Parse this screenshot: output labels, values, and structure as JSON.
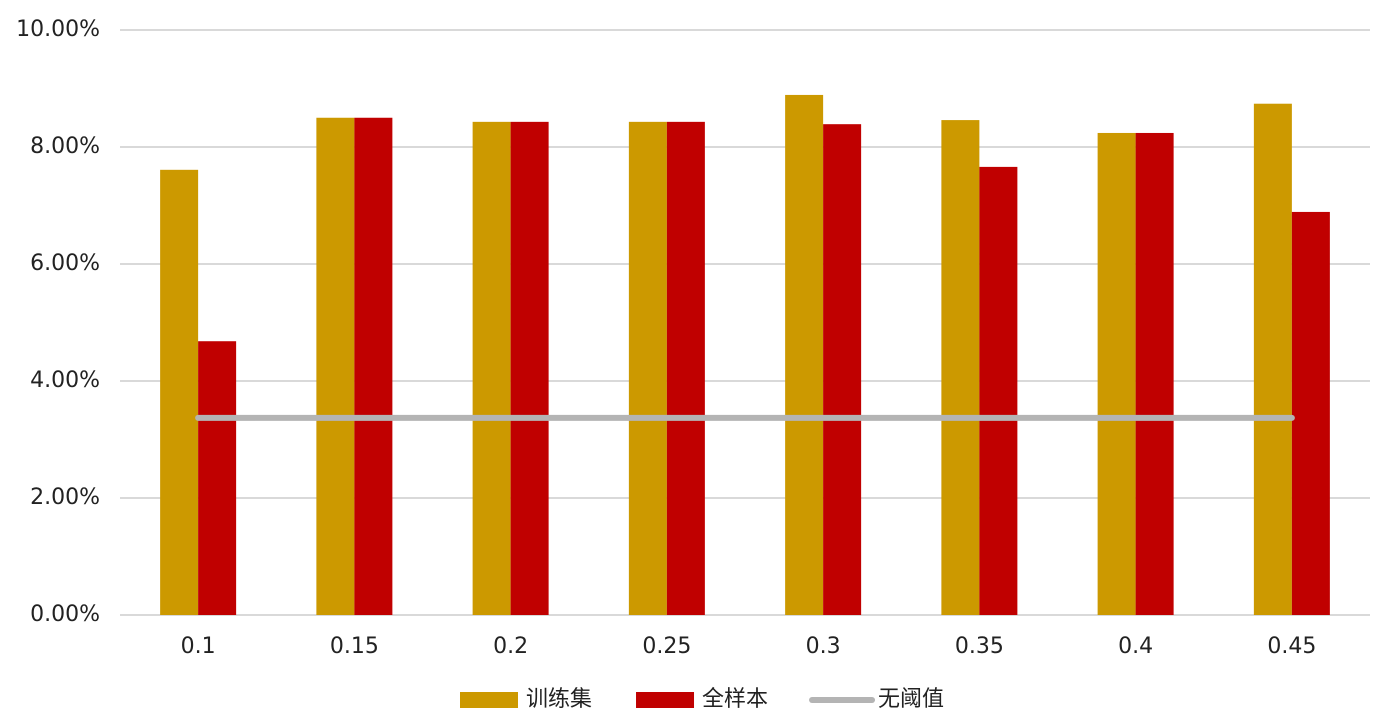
{
  "chart_data": {
    "type": "bar",
    "categories": [
      "0.1",
      "0.15",
      "0.2",
      "0.25",
      "0.3",
      "0.35",
      "0.4",
      "0.45"
    ],
    "series": [
      {
        "name": "训练集",
        "color": "#cc9900",
        "values": [
          7.61,
          8.5,
          8.43,
          8.43,
          8.89,
          8.46,
          8.24,
          8.74
        ]
      },
      {
        "name": "全样本",
        "color": "#c00000",
        "values": [
          4.68,
          8.5,
          8.43,
          8.43,
          8.39,
          7.66,
          8.24,
          6.89
        ]
      },
      {
        "name": "无阈值",
        "color": "#b4b4b4",
        "type": "line",
        "values": [
          3.37,
          3.37,
          3.37,
          3.37,
          3.37,
          3.37,
          3.37,
          3.37
        ]
      }
    ],
    "ylim": [
      0,
      10
    ],
    "yticks": [
      {
        "value": 0,
        "label": "0.00%"
      },
      {
        "value": 2,
        "label": "2.00%"
      },
      {
        "value": 4,
        "label": "4.00%"
      },
      {
        "value": 6,
        "label": "6.00%"
      },
      {
        "value": 8,
        "label": "8.00%"
      },
      {
        "value": 10,
        "label": "10.00%"
      }
    ],
    "grid": true,
    "legend": "bottom"
  }
}
